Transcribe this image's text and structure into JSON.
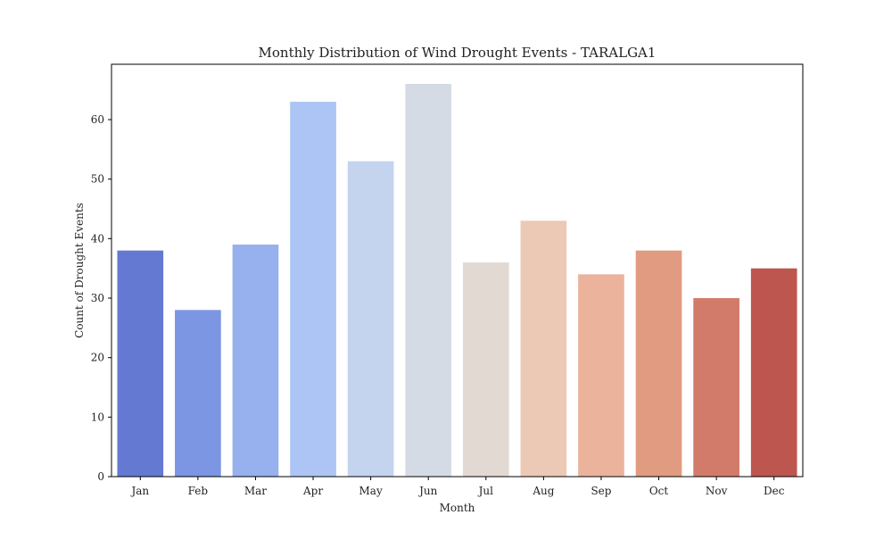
{
  "chart_data": {
    "type": "bar",
    "title": "Monthly Distribution of Wind Drought Events - TARALGA1",
    "xlabel": "Month",
    "ylabel": "Count of Drought Events",
    "categories": [
      "Jan",
      "Feb",
      "Mar",
      "Apr",
      "May",
      "Jun",
      "Jul",
      "Aug",
      "Sep",
      "Oct",
      "Nov",
      "Dec"
    ],
    "values": [
      38,
      28,
      39,
      63,
      53,
      66,
      36,
      43,
      34,
      38,
      30,
      35
    ],
    "colors": [
      "#6479d1",
      "#7d96e3",
      "#97b0ee",
      "#adc5f5",
      "#c4d4ef",
      "#d5dbe5",
      "#e3d9d3",
      "#ecc9b5",
      "#ebb39c",
      "#e19b81",
      "#d37b6a",
      "#bd564f"
    ],
    "ylim": [
      0,
      69.3
    ],
    "yticks": [
      0,
      10,
      20,
      30,
      40,
      50,
      60
    ],
    "grid": false,
    "legend": "none"
  }
}
